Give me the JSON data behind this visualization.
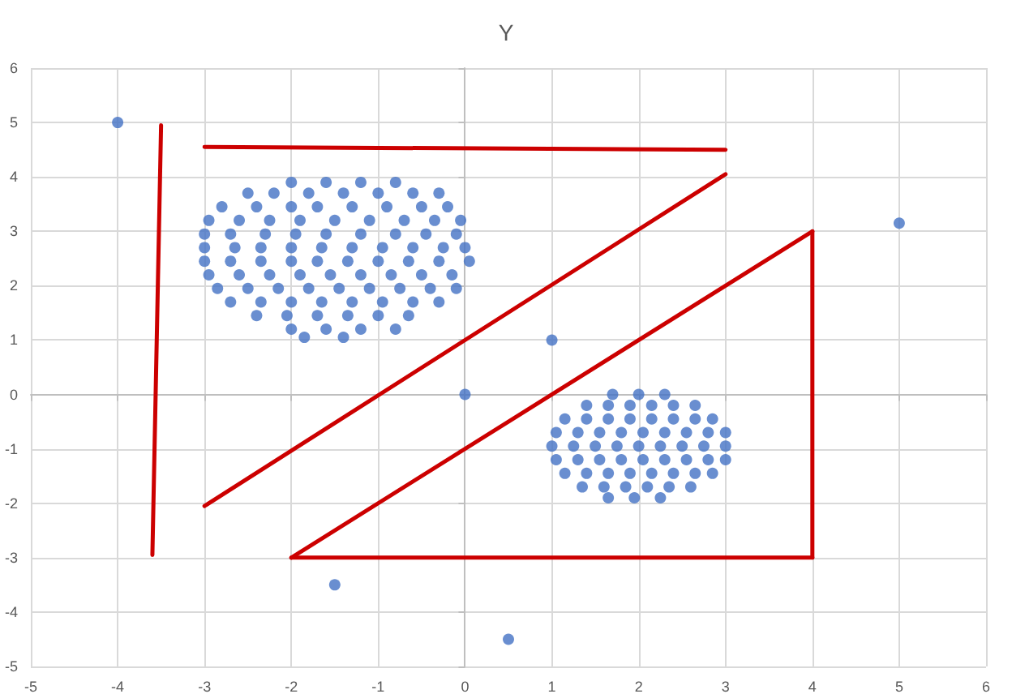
{
  "chart_data": {
    "type": "scatter",
    "title": "Y",
    "xlim": [
      -5,
      6
    ],
    "ylim": [
      -5,
      6
    ],
    "xticks": [
      -5,
      -4,
      -3,
      -2,
      -1,
      0,
      1,
      2,
      3,
      4,
      5,
      6
    ],
    "yticks": [
      -5,
      -4,
      -3,
      -2,
      -1,
      0,
      1,
      2,
      3,
      4,
      5,
      6
    ],
    "grid": true,
    "series": [
      {
        "marker": "circle",
        "color": "#4472c4",
        "x": [
          -4,
          5,
          0,
          1,
          -1.5,
          0.5,
          -2.0,
          -1.6,
          -1.2,
          -0.8,
          -2.5,
          -2.2,
          -1.8,
          -1.4,
          -1.0,
          -0.6,
          -0.3,
          -2.8,
          -2.4,
          -2.0,
          -1.7,
          -1.3,
          -0.9,
          -0.5,
          -0.2,
          -2.95,
          -2.6,
          -2.25,
          -1.9,
          -1.5,
          -1.1,
          -0.7,
          -0.35,
          -0.05,
          -3.0,
          -2.7,
          -2.3,
          -1.95,
          -1.6,
          -1.2,
          -0.8,
          -0.45,
          -0.1,
          -3.0,
          -2.65,
          -2.35,
          -2.0,
          -1.65,
          -1.3,
          -0.95,
          -0.6,
          -0.25,
          0.0,
          -3.0,
          -2.7,
          -2.35,
          -2.0,
          -1.7,
          -1.35,
          -1.0,
          -0.65,
          -0.3,
          0.05,
          -2.95,
          -2.6,
          -2.25,
          -1.9,
          -1.55,
          -1.2,
          -0.85,
          -0.5,
          -0.15,
          -2.85,
          -2.5,
          -2.15,
          -1.8,
          -1.45,
          -1.1,
          -0.75,
          -0.4,
          -0.1,
          -2.7,
          -2.35,
          -2.0,
          -1.65,
          -1.3,
          -0.95,
          -0.6,
          -0.3,
          -2.4,
          -2.05,
          -1.7,
          -1.35,
          -1.0,
          -0.65,
          -2.0,
          -1.6,
          -1.2,
          -0.8,
          -1.85,
          -1.4,
          1.7,
          2.0,
          2.3,
          1.4,
          1.65,
          1.9,
          2.15,
          2.4,
          2.65,
          1.15,
          1.4,
          1.65,
          1.9,
          2.15,
          2.4,
          2.65,
          2.85,
          1.05,
          1.3,
          1.55,
          1.8,
          2.05,
          2.3,
          2.55,
          2.8,
          3.0,
          1.0,
          1.25,
          1.5,
          1.75,
          2.0,
          2.25,
          2.5,
          2.75,
          3.0,
          1.05,
          1.3,
          1.55,
          1.8,
          2.05,
          2.3,
          2.55,
          2.8,
          3.0,
          1.15,
          1.4,
          1.65,
          1.9,
          2.15,
          2.4,
          2.65,
          2.85,
          1.35,
          1.6,
          1.85,
          2.1,
          2.35,
          2.6,
          1.65,
          1.95,
          2.25
        ],
        "values": [
          5,
          3.15,
          0,
          1,
          -3.5,
          -4.5,
          3.9,
          3.9,
          3.9,
          3.9,
          3.7,
          3.7,
          3.7,
          3.7,
          3.7,
          3.7,
          3.7,
          3.45,
          3.45,
          3.45,
          3.45,
          3.45,
          3.45,
          3.45,
          3.45,
          3.2,
          3.2,
          3.2,
          3.2,
          3.2,
          3.2,
          3.2,
          3.2,
          3.2,
          2.95,
          2.95,
          2.95,
          2.95,
          2.95,
          2.95,
          2.95,
          2.95,
          2.95,
          2.7,
          2.7,
          2.7,
          2.7,
          2.7,
          2.7,
          2.7,
          2.7,
          2.7,
          2.7,
          2.45,
          2.45,
          2.45,
          2.45,
          2.45,
          2.45,
          2.45,
          2.45,
          2.45,
          2.45,
          2.2,
          2.2,
          2.2,
          2.2,
          2.2,
          2.2,
          2.2,
          2.2,
          2.2,
          1.95,
          1.95,
          1.95,
          1.95,
          1.95,
          1.95,
          1.95,
          1.95,
          1.95,
          1.7,
          1.7,
          1.7,
          1.7,
          1.7,
          1.7,
          1.7,
          1.7,
          1.45,
          1.45,
          1.45,
          1.45,
          1.45,
          1.45,
          1.2,
          1.2,
          1.2,
          1.2,
          1.05,
          1.05,
          0,
          0,
          0,
          -0.2,
          -0.2,
          -0.2,
          -0.2,
          -0.2,
          -0.2,
          -0.45,
          -0.45,
          -0.45,
          -0.45,
          -0.45,
          -0.45,
          -0.45,
          -0.45,
          -0.7,
          -0.7,
          -0.7,
          -0.7,
          -0.7,
          -0.7,
          -0.7,
          -0.7,
          -0.7,
          -0.95,
          -0.95,
          -0.95,
          -0.95,
          -0.95,
          -0.95,
          -0.95,
          -0.95,
          -0.95,
          -1.2,
          -1.2,
          -1.2,
          -1.2,
          -1.2,
          -1.2,
          -1.2,
          -1.2,
          -1.2,
          -1.45,
          -1.45,
          -1.45,
          -1.45,
          -1.45,
          -1.45,
          -1.45,
          -1.45,
          -1.7,
          -1.7,
          -1.7,
          -1.7,
          -1.7,
          -1.7,
          -1.9,
          -1.9,
          -1.9
        ]
      },
      {
        "type": "line",
        "marker": "none",
        "color": "#cc0000",
        "x": [
          -3.5,
          -3.6
        ],
        "values": [
          4.95,
          -2.95
        ]
      },
      {
        "type": "line",
        "marker": "none",
        "color": "#cc0000",
        "x": [
          -3,
          3
        ],
        "values": [
          4.55,
          4.5
        ]
      },
      {
        "type": "line",
        "marker": "none",
        "color": "#cc0000",
        "x": [
          -3,
          3
        ],
        "values": [
          -2.05,
          4.05
        ]
      },
      {
        "type": "line",
        "marker": "none",
        "color": "#cc0000",
        "x": [
          -2,
          4
        ],
        "values": [
          -3,
          3
        ]
      },
      {
        "type": "line",
        "marker": "none",
        "color": "#cc0000",
        "x": [
          4,
          4
        ],
        "values": [
          3,
          -3
        ]
      },
      {
        "type": "line",
        "marker": "none",
        "color": "#cc0000",
        "x": [
          4,
          -2
        ],
        "values": [
          -3,
          -3
        ]
      }
    ]
  }
}
